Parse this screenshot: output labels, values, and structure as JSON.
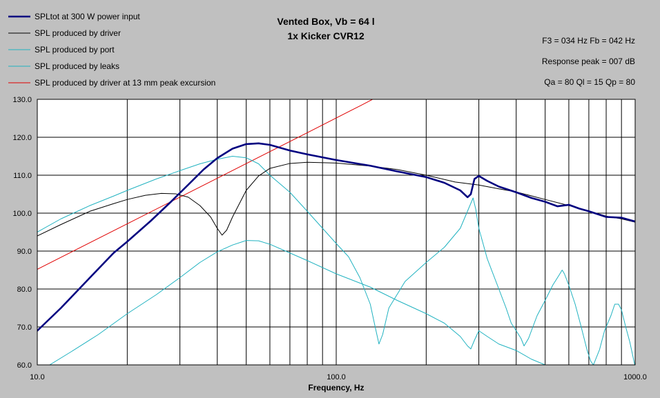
{
  "chart_data": {
    "type": "line",
    "title": "Vented Box, Vb = 64 l",
    "subtitle": "1x Kicker CVR12",
    "xlabel": "Frequency, Hz",
    "ylabel": "",
    "xscale": "log",
    "xlim": [
      10,
      1000
    ],
    "ylim": [
      60,
      130
    ],
    "grid": true,
    "legend": "top-left",
    "x_tick_labels": [
      "10.0",
      "100.0",
      "1000.0"
    ],
    "y_tick_labels": [
      "60.0",
      "70.0",
      "80.0",
      "90.0",
      "100.0",
      "110.0",
      "120.0",
      "130.0"
    ],
    "info": {
      "line1": "F3 = 034 Hz  Fb = 042 Hz",
      "line2": "Response peak = 007 dB",
      "line3": "Qa = 80  Ql = 15  Qp = 80"
    },
    "series": [
      {
        "name": "SPLtot at 300 W power input",
        "color": "#000080",
        "width": "thick",
        "points": [
          [
            10,
            69
          ],
          [
            12,
            75
          ],
          [
            15,
            83
          ],
          [
            18,
            89.5
          ],
          [
            20,
            92.5
          ],
          [
            24,
            98
          ],
          [
            28,
            103
          ],
          [
            32,
            107.5
          ],
          [
            36,
            111.5
          ],
          [
            40,
            114.5
          ],
          [
            45,
            117
          ],
          [
            50,
            118.2
          ],
          [
            55,
            118.4
          ],
          [
            60,
            118
          ],
          [
            70,
            116.5
          ],
          [
            80,
            115.5
          ],
          [
            100,
            114
          ],
          [
            130,
            112.5
          ],
          [
            160,
            111
          ],
          [
            200,
            109.5
          ],
          [
            230,
            108
          ],
          [
            260,
            106
          ],
          [
            275,
            104.2
          ],
          [
            282,
            105
          ],
          [
            290,
            109
          ],
          [
            300,
            109.8
          ],
          [
            320,
            108.5
          ],
          [
            350,
            107
          ],
          [
            400,
            105.5
          ],
          [
            450,
            104
          ],
          [
            500,
            103
          ],
          [
            550,
            101.8
          ],
          [
            600,
            102.2
          ],
          [
            650,
            101.2
          ],
          [
            700,
            100.5
          ],
          [
            800,
            99
          ],
          [
            900,
            98.8
          ],
          [
            1000,
            97.8
          ]
        ]
      },
      {
        "name": "SPL produced by driver",
        "color": "#000000",
        "width": "thin",
        "points": [
          [
            10,
            94
          ],
          [
            12,
            97
          ],
          [
            15,
            100.5
          ],
          [
            18,
            102.5
          ],
          [
            20,
            103.6
          ],
          [
            23,
            104.7
          ],
          [
            26,
            105.2
          ],
          [
            29,
            105.1
          ],
          [
            32,
            104.2
          ],
          [
            35,
            102
          ],
          [
            38,
            99
          ],
          [
            40,
            96
          ],
          [
            41.5,
            94.2
          ],
          [
            43,
            95.5
          ],
          [
            45,
            99
          ],
          [
            50,
            106
          ],
          [
            55,
            109.8
          ],
          [
            60,
            111.8
          ],
          [
            70,
            113.1
          ],
          [
            80,
            113.4
          ],
          [
            100,
            113.2
          ],
          [
            130,
            112.4
          ],
          [
            160,
            111.5
          ],
          [
            200,
            110
          ],
          [
            250,
            108.2
          ],
          [
            300,
            107.4
          ],
          [
            350,
            106.4
          ],
          [
            400,
            105.6
          ],
          [
            500,
            103.6
          ],
          [
            600,
            102
          ],
          [
            700,
            100.6
          ],
          [
            800,
            99.2
          ],
          [
            900,
            98.5
          ],
          [
            1000,
            97.6
          ]
        ]
      },
      {
        "name": "SPL produced by port",
        "color": "#20b2c0",
        "width": "thin",
        "points": [
          [
            10,
            95
          ],
          [
            12,
            98.5
          ],
          [
            15,
            102
          ],
          [
            18,
            104.5
          ],
          [
            20,
            106
          ],
          [
            25,
            109
          ],
          [
            30,
            111.2
          ],
          [
            35,
            113
          ],
          [
            40,
            114.2
          ],
          [
            45,
            115
          ],
          [
            50,
            114.6
          ],
          [
            55,
            113
          ],
          [
            60,
            110
          ],
          [
            70,
            105.5
          ],
          [
            80,
            100.5
          ],
          [
            100,
            92
          ],
          [
            110,
            88.5
          ],
          [
            120,
            83
          ],
          [
            130,
            76
          ],
          [
            135,
            70
          ],
          [
            139,
            65.5
          ],
          [
            143,
            68
          ],
          [
            150,
            75
          ],
          [
            170,
            82
          ],
          [
            200,
            87
          ],
          [
            230,
            91
          ],
          [
            260,
            96
          ],
          [
            280,
            102
          ],
          [
            287,
            104
          ],
          [
            293,
            101
          ],
          [
            300,
            96
          ],
          [
            320,
            88
          ],
          [
            350,
            80
          ],
          [
            370,
            75
          ],
          [
            385,
            71
          ],
          [
            400,
            69
          ],
          [
            415,
            67
          ],
          [
            425,
            65
          ],
          [
            440,
            67
          ],
          [
            470,
            73
          ],
          [
            500,
            77
          ],
          [
            530,
            81
          ],
          [
            560,
            84
          ],
          [
            570,
            85
          ],
          [
            580,
            84
          ],
          [
            600,
            81
          ],
          [
            630,
            76
          ],
          [
            660,
            70
          ],
          [
            690,
            64
          ],
          [
            710,
            61
          ],
          [
            725,
            60
          ],
          [
            760,
            64
          ],
          [
            790,
            69
          ],
          [
            830,
            73
          ],
          [
            855,
            76
          ],
          [
            880,
            76
          ],
          [
            900,
            74.5
          ],
          [
            930,
            70
          ],
          [
            960,
            66
          ],
          [
            1000,
            59.5
          ]
        ]
      },
      {
        "name": "SPL produced by leaks",
        "color": "#20b2c0",
        "width": "thin",
        "points": [
          [
            11,
            60
          ],
          [
            13,
            63.5
          ],
          [
            16,
            68
          ],
          [
            20,
            73.5
          ],
          [
            25,
            78.5
          ],
          [
            30,
            83
          ],
          [
            35,
            87
          ],
          [
            40,
            89.8
          ],
          [
            45,
            91.6
          ],
          [
            50,
            92.8
          ],
          [
            55,
            92.7
          ],
          [
            60,
            91.8
          ],
          [
            70,
            89.5
          ],
          [
            80,
            87.5
          ],
          [
            100,
            84
          ],
          [
            130,
            80.5
          ],
          [
            160,
            77
          ],
          [
            200,
            73.5
          ],
          [
            230,
            71
          ],
          [
            260,
            67.5
          ],
          [
            275,
            65
          ],
          [
            282,
            64.2
          ],
          [
            290,
            66.5
          ],
          [
            300,
            69
          ],
          [
            320,
            67.5
          ],
          [
            350,
            65.5
          ],
          [
            400,
            63.8
          ],
          [
            450,
            61.5
          ],
          [
            500,
            60
          ]
        ]
      },
      {
        "name": "SPL produced by driver at 13 mm peak excursion",
        "color": "#e00000",
        "width": "thin",
        "points": [
          [
            10,
            85.2
          ],
          [
            20,
            97.2
          ],
          [
            40,
            109.2
          ],
          [
            80,
            121.2
          ],
          [
            121,
            128.4
          ],
          [
            140,
            131
          ]
        ]
      }
    ]
  }
}
